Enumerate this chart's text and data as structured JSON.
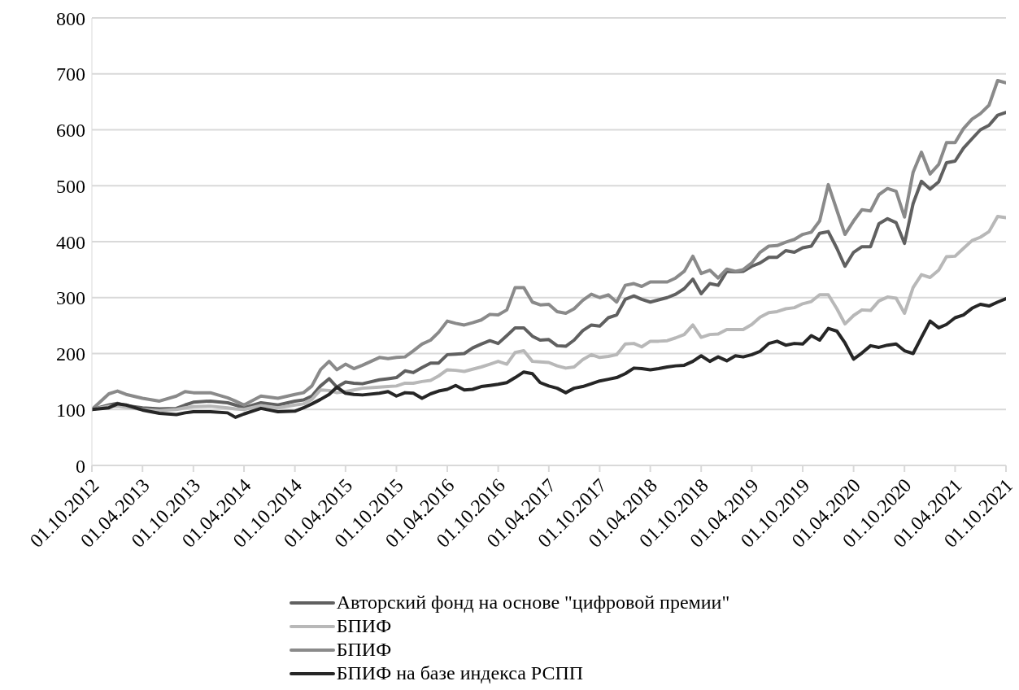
{
  "chart_data": {
    "type": "line",
    "x": [
      "2012-10",
      "2012-12",
      "2013-01",
      "2013-02",
      "2013-04",
      "2013-06",
      "2013-08",
      "2013-09",
      "2013-10",
      "2013-12",
      "2014-02",
      "2014-03",
      "2014-04",
      "2014-06",
      "2014-08",
      "2014-10",
      "2014-11",
      "2014-12",
      "2015-01",
      "2015-02",
      "2015-03",
      "2015-04",
      "2015-05",
      "2015-06",
      "2015-08",
      "2015-09",
      "2015-10",
      "2015-11",
      "2015-12",
      "2016-01",
      "2016-02",
      "2016-03",
      "2016-04",
      "2016-05",
      "2016-06",
      "2016-07",
      "2016-08",
      "2016-09",
      "2016-10",
      "2016-11",
      "2016-12",
      "2017-01",
      "2017-02",
      "2017-03",
      "2017-04",
      "2017-05",
      "2017-06",
      "2017-07",
      "2017-08",
      "2017-09",
      "2017-10",
      "2017-11",
      "2017-12",
      "2018-01",
      "2018-02",
      "2018-03",
      "2018-04",
      "2018-05",
      "2018-06",
      "2018-07",
      "2018-08",
      "2018-09",
      "2018-10",
      "2018-11",
      "2018-12",
      "2019-01",
      "2019-02",
      "2019-03",
      "2019-04",
      "2019-05",
      "2019-06",
      "2019-07",
      "2019-08",
      "2019-09",
      "2019-10",
      "2019-11",
      "2019-12",
      "2020-01",
      "2020-02",
      "2020-03",
      "2020-04",
      "2020-05",
      "2020-06",
      "2020-07",
      "2020-08",
      "2020-09",
      "2020-10",
      "2020-11",
      "2020-12",
      "2021-01",
      "2021-02",
      "2021-03",
      "2021-04",
      "2021-05",
      "2021-06",
      "2021-07",
      "2021-08",
      "2021-09",
      "2021-10"
    ],
    "series": [
      {
        "name": "Авторский фонд на основе \"цифровой премии\"",
        "color": "#606060",
        "values": [
          100,
          108,
          111,
          107,
          103,
          101,
          102,
          108,
          113,
          115,
          112,
          108,
          103,
          112,
          108,
          115,
          117,
          124,
          142,
          155,
          140,
          149,
          147,
          146,
          153,
          155,
          157,
          169,
          166,
          175,
          183,
          183,
          198,
          199,
          200,
          210,
          217,
          223,
          218,
          232,
          246,
          246,
          231,
          224,
          225,
          214,
          213,
          224,
          241,
          251,
          249,
          264,
          269,
          297,
          303,
          297,
          292,
          296,
          300,
          306,
          316,
          333,
          307,
          325,
          322,
          347,
          346,
          347,
          356,
          362,
          372,
          372,
          384,
          381,
          389,
          392,
          415,
          418,
          388,
          356,
          381,
          391,
          391,
          432,
          441,
          434,
          397,
          468,
          508,
          494,
          507,
          541,
          544,
          567,
          584,
          600,
          608,
          626,
          631
        ]
      },
      {
        "name": "БПИФ",
        "color": "#b8b8b8",
        "values": [
          100,
          106,
          106,
          104,
          100,
          98,
          100,
          103,
          105,
          106,
          103,
          101,
          100,
          107,
          103,
          108,
          110,
          118,
          135,
          134,
          130,
          132,
          135,
          138,
          140,
          141,
          142,
          147,
          147,
          150,
          152,
          160,
          171,
          170,
          168,
          172,
          176,
          181,
          186,
          181,
          202,
          205,
          186,
          185,
          184,
          178,
          174,
          176,
          189,
          198,
          193,
          195,
          198,
          217,
          218,
          212,
          222,
          222,
          223,
          228,
          234,
          251,
          229,
          234,
          235,
          243,
          243,
          243,
          252,
          265,
          273,
          275,
          280,
          282,
          289,
          293,
          305,
          305,
          280,
          253,
          268,
          278,
          277,
          294,
          301,
          299,
          272,
          318,
          341,
          336,
          349,
          373,
          374,
          388,
          402,
          408,
          418,
          445,
          443
        ]
      },
      {
        "name": "БПИФ",
        "color": "#8a8a8a",
        "values": [
          100,
          128,
          133,
          127,
          120,
          115,
          124,
          132,
          130,
          130,
          121,
          115,
          108,
          124,
          120,
          127,
          130,
          142,
          171,
          186,
          171,
          181,
          173,
          179,
          193,
          191,
          193,
          194,
          205,
          217,
          224,
          238,
          258,
          254,
          251,
          255,
          260,
          270,
          269,
          278,
          318,
          318,
          292,
          287,
          288,
          275,
          272,
          280,
          295,
          306,
          300,
          305,
          292,
          322,
          325,
          320,
          328,
          328,
          328,
          335,
          347,
          374,
          343,
          349,
          335,
          351,
          347,
          350,
          362,
          381,
          392,
          393,
          399,
          404,
          413,
          417,
          437,
          502,
          456,
          413,
          437,
          457,
          455,
          484,
          495,
          490,
          444,
          524,
          560,
          521,
          538,
          577,
          577,
          602,
          619,
          629,
          644,
          688,
          684
        ]
      },
      {
        "name": "БПИФ на базе индекса РСПП",
        "color": "#262626",
        "values": [
          100,
          103,
          110,
          108,
          99,
          93,
          91,
          94,
          96,
          96,
          94,
          86,
          92,
          102,
          96,
          97,
          103,
          110,
          118,
          127,
          140,
          129,
          127,
          126,
          129,
          132,
          124,
          130,
          129,
          120,
          128,
          133,
          136,
          143,
          135,
          136,
          141,
          143,
          145,
          148,
          157,
          167,
          164,
          148,
          142,
          138,
          130,
          138,
          141,
          146,
          151,
          154,
          157,
          164,
          174,
          173,
          171,
          173,
          176,
          178,
          179,
          186,
          196,
          186,
          194,
          187,
          196,
          194,
          198,
          204,
          218,
          222,
          215,
          218,
          217,
          232,
          224,
          245,
          240,
          219,
          190,
          201,
          214,
          211,
          215,
          217,
          205,
          200,
          229,
          258,
          246,
          252,
          264,
          269,
          281,
          288,
          285,
          292,
          298
        ]
      }
    ],
    "xlim": [
      "2012-10",
      "2021-10"
    ],
    "xticks": [
      {
        "value": "2012-10",
        "label": "01.10.2012"
      },
      {
        "value": "2013-04",
        "label": "01.04.2013"
      },
      {
        "value": "2013-10",
        "label": "01.10.2013"
      },
      {
        "value": "2014-04",
        "label": "01.04.2014"
      },
      {
        "value": "2014-10",
        "label": "01.10.2014"
      },
      {
        "value": "2015-04",
        "label": "01.04.2015"
      },
      {
        "value": "2015-10",
        "label": "01.10.2015"
      },
      {
        "value": "2016-04",
        "label": "01.04.2016"
      },
      {
        "value": "2016-10",
        "label": "01.10.2016"
      },
      {
        "value": "2017-04",
        "label": "01.04.2017"
      },
      {
        "value": "2017-10",
        "label": "01.10.2017"
      },
      {
        "value": "2018-04",
        "label": "01.04.2018"
      },
      {
        "value": "2018-10",
        "label": "01.10.2018"
      },
      {
        "value": "2019-04",
        "label": "01.04.2019"
      },
      {
        "value": "2019-10",
        "label": "01.10.2019"
      },
      {
        "value": "2020-04",
        "label": "01.04.2020"
      },
      {
        "value": "2020-10",
        "label": "01.10.2020"
      },
      {
        "value": "2021-04",
        "label": "01.04.2021"
      },
      {
        "value": "2021-10",
        "label": "01.10.2021"
      }
    ],
    "ylim": [
      0,
      800
    ],
    "yticks": [
      0,
      100,
      200,
      300,
      400,
      500,
      600,
      700,
      800
    ],
    "grid": "y",
    "legend": "bottom",
    "marker": "none",
    "line_style": "solid"
  }
}
